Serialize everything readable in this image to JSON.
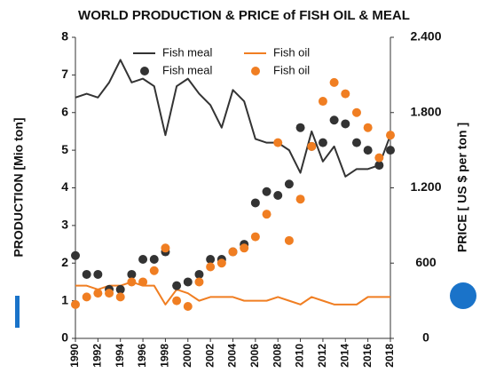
{
  "chart_data": {
    "type": "line",
    "title": "WORLD PRODUCTION & PRICE of FISH OIL & MEAL",
    "y_label": "PRODUCTION [Mio ton]",
    "y2_label": "PRICE [ US $ per ton ]",
    "x": [
      1990,
      1991,
      1992,
      1993,
      1994,
      1995,
      1996,
      1997,
      1998,
      1999,
      2000,
      2001,
      2002,
      2003,
      2004,
      2005,
      2006,
      2007,
      2008,
      2009,
      2010,
      2011,
      2012,
      2013,
      2014,
      2015,
      2016,
      2017,
      2018
    ],
    "xlim": [
      1990,
      2018
    ],
    "xticks": [
      1990,
      1992,
      1994,
      1996,
      1998,
      2000,
      2002,
      2004,
      2006,
      2008,
      2010,
      2012,
      2014,
      2016,
      2018
    ],
    "ylim": [
      0,
      8
    ],
    "yticks": [
      0,
      1,
      2,
      3,
      4,
      5,
      6,
      7,
      8
    ],
    "y2lim": [
      0,
      2400
    ],
    "y2ticks": [
      0,
      600,
      {
        "value": 1200,
        "label": "1.200"
      },
      {
        "value": 1800,
        "label": "1.800"
      },
      {
        "value": 2400,
        "label": "2.400"
      }
    ],
    "series": [
      {
        "name": "Fish meal",
        "style": "line",
        "color": "#333333",
        "values": [
          6.4,
          6.5,
          6.4,
          6.8,
          7.4,
          6.8,
          6.9,
          6.7,
          5.4,
          6.7,
          6.9,
          6.5,
          6.2,
          5.6,
          6.6,
          6.3,
          5.3,
          5.2,
          5.2,
          5.0,
          4.4,
          5.5,
          4.7,
          5.1,
          4.3,
          4.5,
          4.5,
          4.6,
          5.4
        ]
      },
      {
        "name": "Fish oil",
        "style": "line",
        "color": "#f07e22",
        "values": [
          1.4,
          1.4,
          1.3,
          1.4,
          1.4,
          1.5,
          1.4,
          1.4,
          0.9,
          1.3,
          1.2,
          1.0,
          1.1,
          1.1,
          1.1,
          1.0,
          1.0,
          1.0,
          1.1,
          1.0,
          0.9,
          1.1,
          1.0,
          0.9,
          0.9,
          0.9,
          1.1,
          1.1,
          1.1
        ]
      },
      {
        "name": "Fish meal",
        "style": "dots",
        "axis": "y2",
        "color": "#333333",
        "values": [
          660,
          510,
          510,
          390,
          390,
          510,
          630,
          630,
          690,
          420,
          450,
          510,
          630,
          630,
          690,
          750,
          1080,
          1170,
          1140,
          1230,
          1680,
          1530,
          1560,
          1740,
          1710,
          1560,
          1500,
          1380,
          1500
        ]
      },
      {
        "name": "Fish oil",
        "style": "dots",
        "axis": "y2",
        "color": "#f07e22",
        "values": [
          270,
          330,
          360,
          360,
          330,
          450,
          450,
          540,
          720,
          300,
          255,
          450,
          570,
          600,
          690,
          720,
          810,
          990,
          1560,
          780,
          1110,
          1530,
          1890,
          2040,
          1950,
          1800,
          1680,
          1440,
          1620
        ]
      }
    ]
  }
}
